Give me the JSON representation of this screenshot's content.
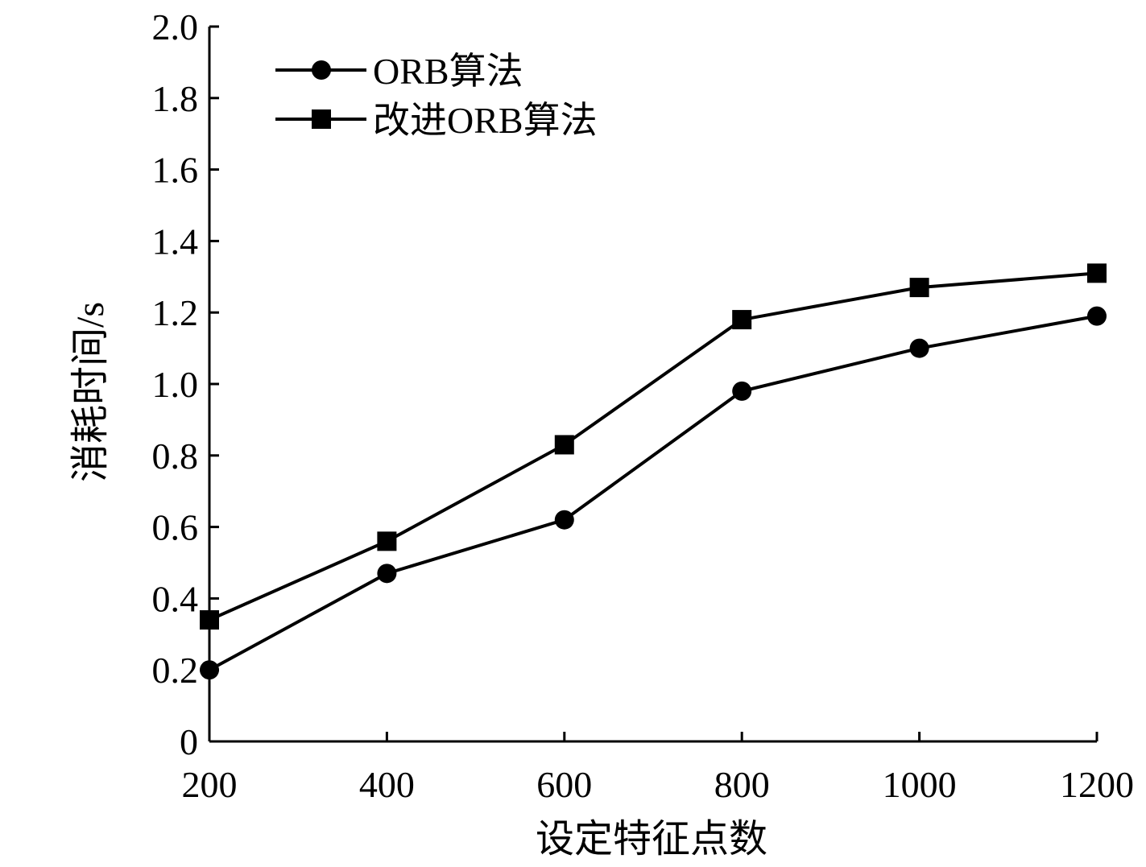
{
  "chart_data": {
    "type": "line",
    "xlabel": "设定特征点数",
    "ylabel": "消耗时间/s",
    "x": [
      200,
      400,
      600,
      800,
      1000,
      1200
    ],
    "xlim": [
      200,
      1200
    ],
    "ylim": [
      0,
      2.0
    ],
    "x_ticks": [
      200,
      400,
      600,
      800,
      1000,
      1200
    ],
    "x_tick_labels": [
      "200",
      "400",
      "600",
      "800",
      "1000",
      "1200"
    ],
    "y_ticks": [
      0,
      0.2,
      0.4,
      0.6,
      0.8,
      1.0,
      1.2,
      1.4,
      1.6,
      1.8,
      2.0
    ],
    "y_tick_labels": [
      "0",
      "0.2",
      "0.4",
      "0.6",
      "0.8",
      "1.0",
      "1.2",
      "1.4",
      "1.6",
      "1.8",
      "2.0"
    ],
    "grid": false,
    "legend_position": "top-left",
    "series": [
      {
        "name": "ORB算法",
        "marker": "circle",
        "color": "#000000",
        "values": [
          0.2,
          0.47,
          0.62,
          0.98,
          1.1,
          1.19
        ]
      },
      {
        "name": "改进ORB算法",
        "marker": "square",
        "color": "#000000",
        "values": [
          0.34,
          0.56,
          0.83,
          1.18,
          1.27,
          1.31
        ]
      }
    ]
  }
}
